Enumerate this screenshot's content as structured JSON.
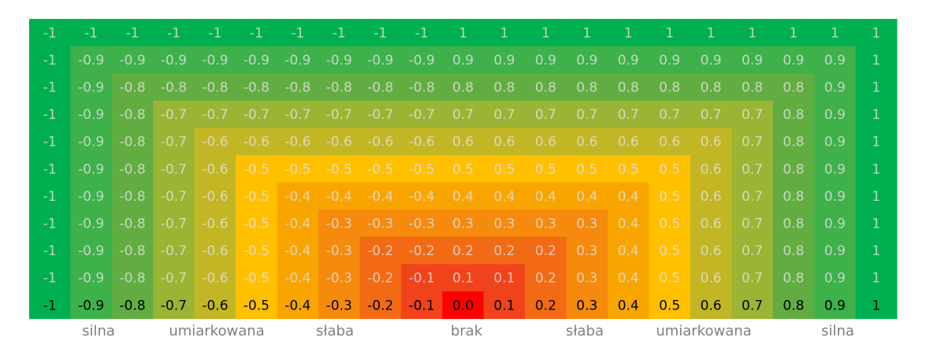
{
  "table": {
    "rows": [
      [
        "-1",
        "-1",
        "-1",
        "-1",
        "-1",
        "-1",
        "-1",
        "-1",
        "-1",
        "-1",
        "1",
        "1",
        "1",
        "1",
        "1",
        "1",
        "1",
        "1",
        "1",
        "1",
        "1"
      ],
      [
        "-1",
        "-0.9",
        "-0.9",
        "-0.9",
        "-0.9",
        "-0.9",
        "-0.9",
        "-0.9",
        "-0.9",
        "-0.9",
        "0.9",
        "0.9",
        "0.9",
        "0.9",
        "0.9",
        "0.9",
        "0.9",
        "0.9",
        "0.9",
        "0.9",
        "1"
      ],
      [
        "-1",
        "-0.9",
        "-0.8",
        "-0.8",
        "-0.8",
        "-0.8",
        "-0.8",
        "-0.8",
        "-0.8",
        "-0.8",
        "0.8",
        "0.8",
        "0.8",
        "0.8",
        "0.8",
        "0.8",
        "0.8",
        "0.8",
        "0.8",
        "0.9",
        "1"
      ],
      [
        "-1",
        "-0.9",
        "-0.8",
        "-0.7",
        "-0.7",
        "-0.7",
        "-0.7",
        "-0.7",
        "-0.7",
        "-0.7",
        "0.7",
        "0.7",
        "0.7",
        "0.7",
        "0.7",
        "0.7",
        "0.7",
        "0.7",
        "0.8",
        "0.9",
        "1"
      ],
      [
        "-1",
        "-0.9",
        "-0.8",
        "-0.7",
        "-0.6",
        "-0.6",
        "-0.6",
        "-0.6",
        "-0.6",
        "-0.6",
        "0.6",
        "0.6",
        "0.6",
        "0.6",
        "0.6",
        "0.6",
        "0.6",
        "0.7",
        "0.8",
        "0.9",
        "1"
      ],
      [
        "-1",
        "-0.9",
        "-0.8",
        "-0.7",
        "-0.6",
        "-0.5",
        "-0.5",
        "-0.5",
        "-0.5",
        "-0.5",
        "0.5",
        "0.5",
        "0.5",
        "0.5",
        "0.5",
        "0.5",
        "0.6",
        "0.7",
        "0.8",
        "0.9",
        "1"
      ],
      [
        "-1",
        "-0.9",
        "-0.8",
        "-0.7",
        "-0.6",
        "-0.5",
        "-0.4",
        "-0.4",
        "-0.4",
        "-0.4",
        "0.4",
        "0.4",
        "0.4",
        "0.4",
        "0.4",
        "0.5",
        "0.6",
        "0.7",
        "0.8",
        "0.9",
        "1"
      ],
      [
        "-1",
        "-0.9",
        "-0.8",
        "-0.7",
        "-0.6",
        "-0.5",
        "-0.4",
        "-0.3",
        "-0.3",
        "-0.3",
        "0.3",
        "0.3",
        "0.3",
        "0.3",
        "0.4",
        "0.5",
        "0.6",
        "0.7",
        "0.8",
        "0.9",
        "1"
      ],
      [
        "-1",
        "-0.9",
        "-0.8",
        "-0.7",
        "-0.6",
        "-0.5",
        "-0.4",
        "-0.3",
        "-0.2",
        "-0.2",
        "0.2",
        "0.2",
        "0.2",
        "0.3",
        "0.4",
        "0.5",
        "0.6",
        "0.7",
        "0.8",
        "0.9",
        "1"
      ],
      [
        "-1",
        "-0.9",
        "-0.8",
        "-0.7",
        "-0.6",
        "-0.5",
        "-0.4",
        "-0.3",
        "-0.2",
        "-0.1",
        "0.1",
        "0.1",
        "0.2",
        "0.3",
        "0.4",
        "0.5",
        "0.6",
        "0.7",
        "0.8",
        "0.9",
        "1"
      ],
      [
        "-1",
        "-0.9",
        "-0.8",
        "-0.7",
        "-0.6",
        "-0.5",
        "-0.4",
        "-0.3",
        "-0.2",
        "-0.1",
        "0.0",
        "0.1",
        "0.2",
        "0.3",
        "0.4",
        "0.5",
        "0.6",
        "0.7",
        "0.8",
        "0.9",
        "1"
      ]
    ]
  },
  "labels": [
    "silna",
    "umiarkowana",
    "słaba",
    "brak",
    "słaba",
    "umiarkowana",
    "silna"
  ]
}
